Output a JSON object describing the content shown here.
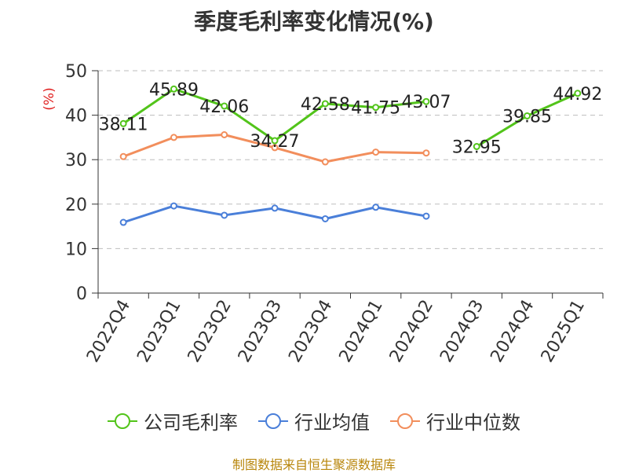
{
  "chart_data": {
    "type": "line",
    "title": "季度毛利率变化情况(%)",
    "ylabel": "(%)",
    "ylim": [
      0,
      50
    ],
    "yticks": [
      0,
      10,
      20,
      30,
      40,
      50
    ],
    "categories": [
      "2022Q4",
      "2023Q1",
      "2023Q2",
      "2023Q3",
      "2023Q4",
      "2024Q1",
      "2024Q2",
      "2024Q3",
      "2024Q4",
      "2025Q1"
    ],
    "grid": true,
    "legend_position": "bottom",
    "series": [
      {
        "name": "公司毛利率",
        "color": "#52c41a",
        "values": [
          38.11,
          45.89,
          42.06,
          34.27,
          42.58,
          41.75,
          43.07,
          32.95,
          39.85,
          44.92
        ],
        "labels": [
          "38.11",
          "45.89",
          "42.06",
          "34.27",
          "42.58",
          "41.75",
          "43.07",
          "32.95",
          "39.85",
          "44.92"
        ],
        "gap_after_index": 6
      },
      {
        "name": "行业均值",
        "color": "#4a7fd9",
        "values": [
          15.9,
          19.6,
          17.5,
          19.1,
          16.7,
          19.3,
          17.3,
          null,
          null,
          null
        ]
      },
      {
        "name": "行业中位数",
        "color": "#f28e5c",
        "values": [
          30.7,
          35.0,
          35.6,
          32.7,
          29.5,
          31.7,
          31.5,
          null,
          null,
          null
        ]
      }
    ]
  },
  "source": "制图数据来自恒生聚源数据库"
}
